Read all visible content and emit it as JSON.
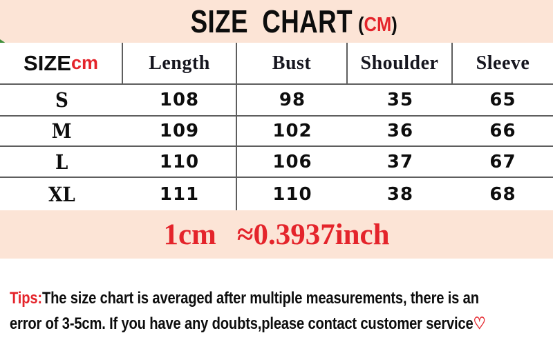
{
  "colors": {
    "band": "#fce4d6",
    "line": "#5e5e5e",
    "accent_red": "#e4242b",
    "text": "#111111"
  },
  "title": {
    "main": "SIZE CHART",
    "unit_open": "(",
    "unit": "CM",
    "unit_close": ")"
  },
  "table": {
    "header": {
      "size_label": "SIZE",
      "size_unit": "cm",
      "columns": [
        "Length",
        "Bust",
        "Shoulder",
        "Sleeve"
      ]
    },
    "rows": [
      {
        "size": "S",
        "values": [
          "108",
          "98",
          "35",
          "65"
        ]
      },
      {
        "size": "M",
        "values": [
          "109",
          "102",
          "36",
          "66"
        ]
      },
      {
        "size": "L",
        "values": [
          "110",
          "106",
          "37",
          "67"
        ]
      },
      {
        "size": "XL",
        "values": [
          "111",
          "110",
          "38",
          "68"
        ]
      }
    ]
  },
  "conversion": {
    "left": "1cm",
    "right": "≈0.3937inch"
  },
  "tips": {
    "label": "Tips:",
    "line1": "The size chart is averaged after multiple measurements, there is an",
    "line2": "error of 3-5cm. If you have any doubts,please contact customer service",
    "heart": "♡"
  },
  "chart_data": {
    "type": "table",
    "title": "SIZE CHART (CM)",
    "unit": "cm",
    "columns": [
      "SIZE",
      "Length",
      "Bust",
      "Shoulder",
      "Sleeve"
    ],
    "rows": [
      [
        "S",
        108,
        98,
        35,
        65
      ],
      [
        "M",
        109,
        102,
        36,
        66
      ],
      [
        "L",
        110,
        106,
        37,
        67
      ],
      [
        "XL",
        111,
        110,
        38,
        68
      ]
    ],
    "notes": [
      "1cm ≈0.3937inch",
      "Tips:The size chart is averaged after multiple measurements, there is an error of 3-5cm. If you have any doubts,please contact customer service♡"
    ]
  }
}
